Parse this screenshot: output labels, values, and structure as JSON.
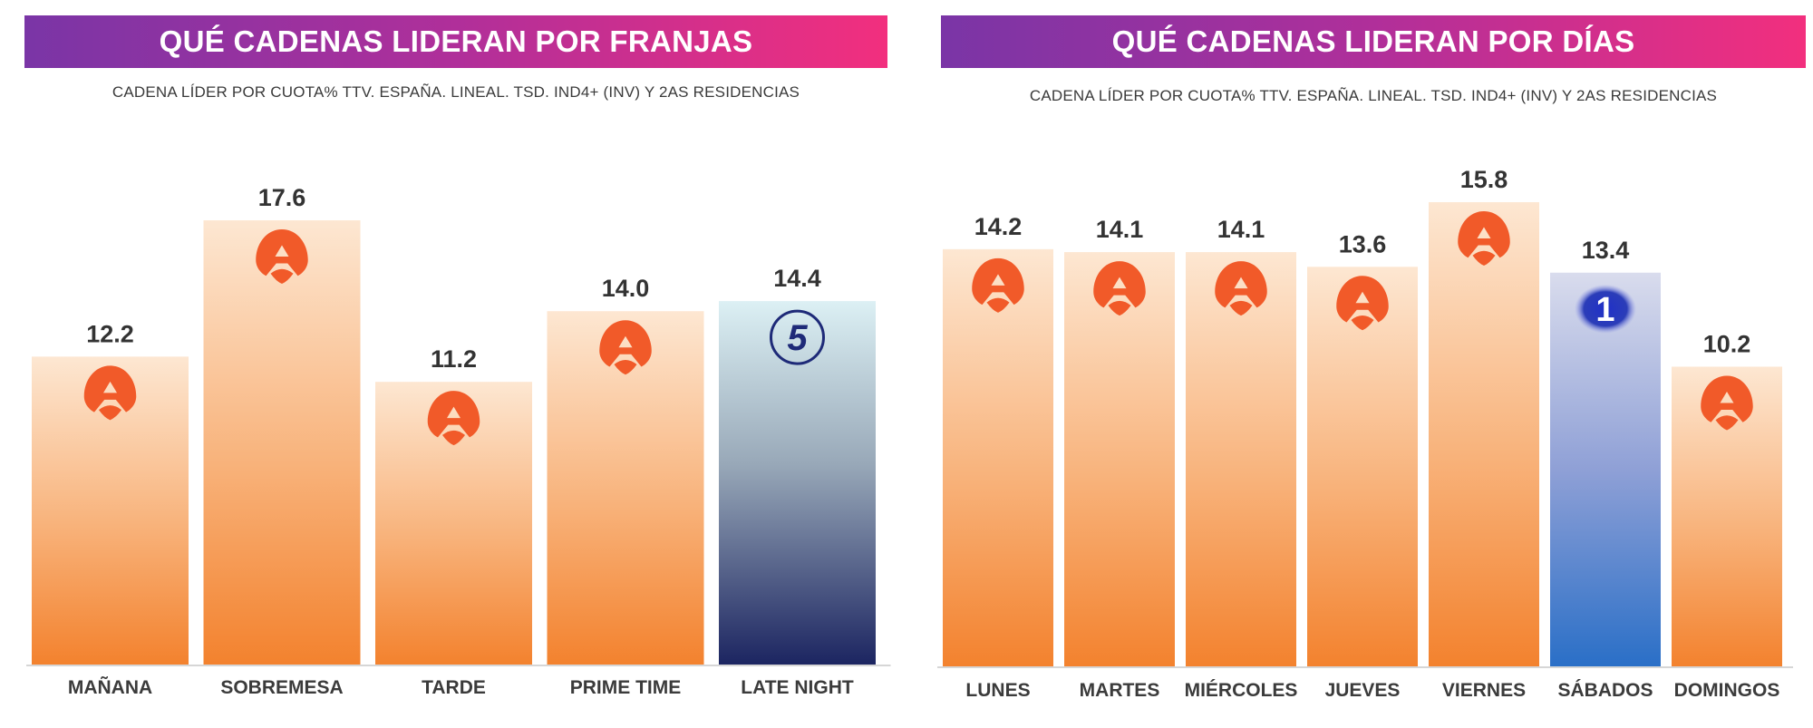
{
  "panels": [
    {
      "title": "QUÉ CADENAS LIDERAN POR FRANJAS",
      "subtitle": "CADENA LÍDER POR CUOTA% TTV. ESPAÑA. LINEAL. TSD. IND4+ (INV) Y 2AS RESIDENCIAS"
    },
    {
      "title": "QUÉ CADENAS LIDERAN POR DÍAS",
      "subtitle": "CADENA LÍDER POR CUOTA% TTV. ESPAÑA. LINEAL. TSD. IND4+ (INV) Y 2AS RESIDENCIAS"
    }
  ],
  "colors": {
    "banner_start": "#7a35a6",
    "banner_end": "#f22f7e",
    "antena3": "#f15a29",
    "telecinco": "#1e2a78",
    "la1": "#2b3db8"
  },
  "chart_data": [
    {
      "type": "bar",
      "title": "QUÉ CADENAS LIDERAN POR FRANJAS",
      "categories": [
        "MAÑANA",
        "SOBREMESA",
        "TARDE",
        "PRIME TIME",
        "LATE NIGHT"
      ],
      "values": [
        12.2,
        17.6,
        11.2,
        14.0,
        14.4
      ],
      "value_labels": [
        "12.2",
        "17.6",
        "11.2",
        "14.0",
        "14.4"
      ],
      "leader_logo": [
        "antena3-logo",
        "antena3-logo",
        "antena3-logo",
        "antena3-logo",
        "telecinco-logo"
      ],
      "ylim": [
        0,
        20
      ],
      "grid": false
    },
    {
      "type": "bar",
      "title": "QUÉ CADENAS LIDERAN POR DÍAS",
      "categories": [
        "LUNES",
        "MARTES",
        "MIÉRCOLES",
        "JUEVES",
        "VIERNES",
        "SÁBADOS",
        "DOMINGOS"
      ],
      "values": [
        14.2,
        14.1,
        14.1,
        13.6,
        15.8,
        13.4,
        10.2
      ],
      "value_labels": [
        "14.2",
        "14.1",
        "14.1",
        "13.6",
        "15.8",
        "13.4",
        "10.2"
      ],
      "leader_logo": [
        "antena3-logo",
        "antena3-logo",
        "antena3-logo",
        "antena3-logo",
        "antena3-logo",
        "la1-logo",
        "antena3-logo"
      ],
      "ylim": [
        0,
        20
      ],
      "grid": false
    }
  ]
}
